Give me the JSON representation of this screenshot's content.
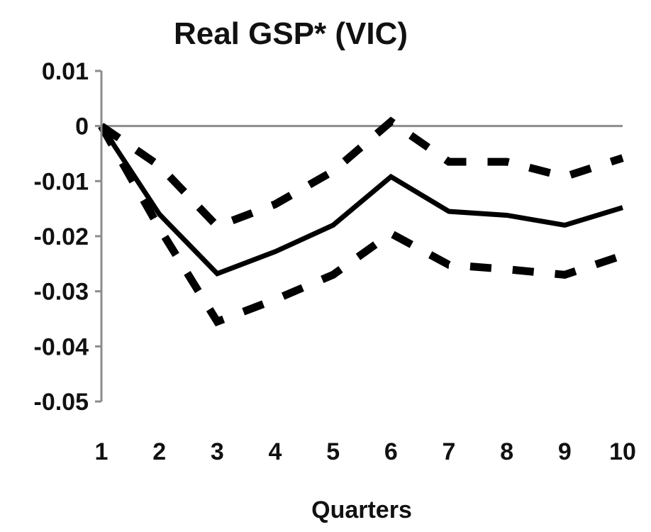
{
  "chart_data": {
    "type": "line",
    "title": "Real GSP* (VIC)",
    "xlabel": "Quarters",
    "ylabel": "",
    "x": [
      1,
      2,
      3,
      4,
      5,
      6,
      7,
      8,
      9,
      10
    ],
    "ylim": [
      -0.05,
      0.01
    ],
    "yticks": [
      0.01,
      0,
      -0.01,
      -0.02,
      -0.03,
      -0.04,
      -0.05
    ],
    "ytick_labels": [
      "0.01",
      "0",
      "-0.01",
      "-0.02",
      "-0.03",
      "-0.04",
      "-0.05"
    ],
    "grid": false,
    "legend": "none",
    "series": [
      {
        "style": "solid",
        "color": "#000000",
        "values": [
          0,
          -0.016,
          -0.0268,
          -0.0228,
          -0.018,
          -0.0092,
          -0.0155,
          -0.0162,
          -0.018,
          -0.0148
        ]
      },
      {
        "style": "dashed",
        "color": "#000000",
        "values": [
          0,
          -0.0072,
          -0.0182,
          -0.0142,
          -0.0082,
          0.0008,
          -0.0065,
          -0.0065,
          -0.0092,
          -0.0058
        ]
      },
      {
        "style": "dashed",
        "color": "#000000",
        "values": [
          0,
          -0.0185,
          -0.0355,
          -0.0315,
          -0.027,
          -0.0195,
          -0.0252,
          -0.026,
          -0.027,
          -0.0235
        ]
      }
    ]
  }
}
